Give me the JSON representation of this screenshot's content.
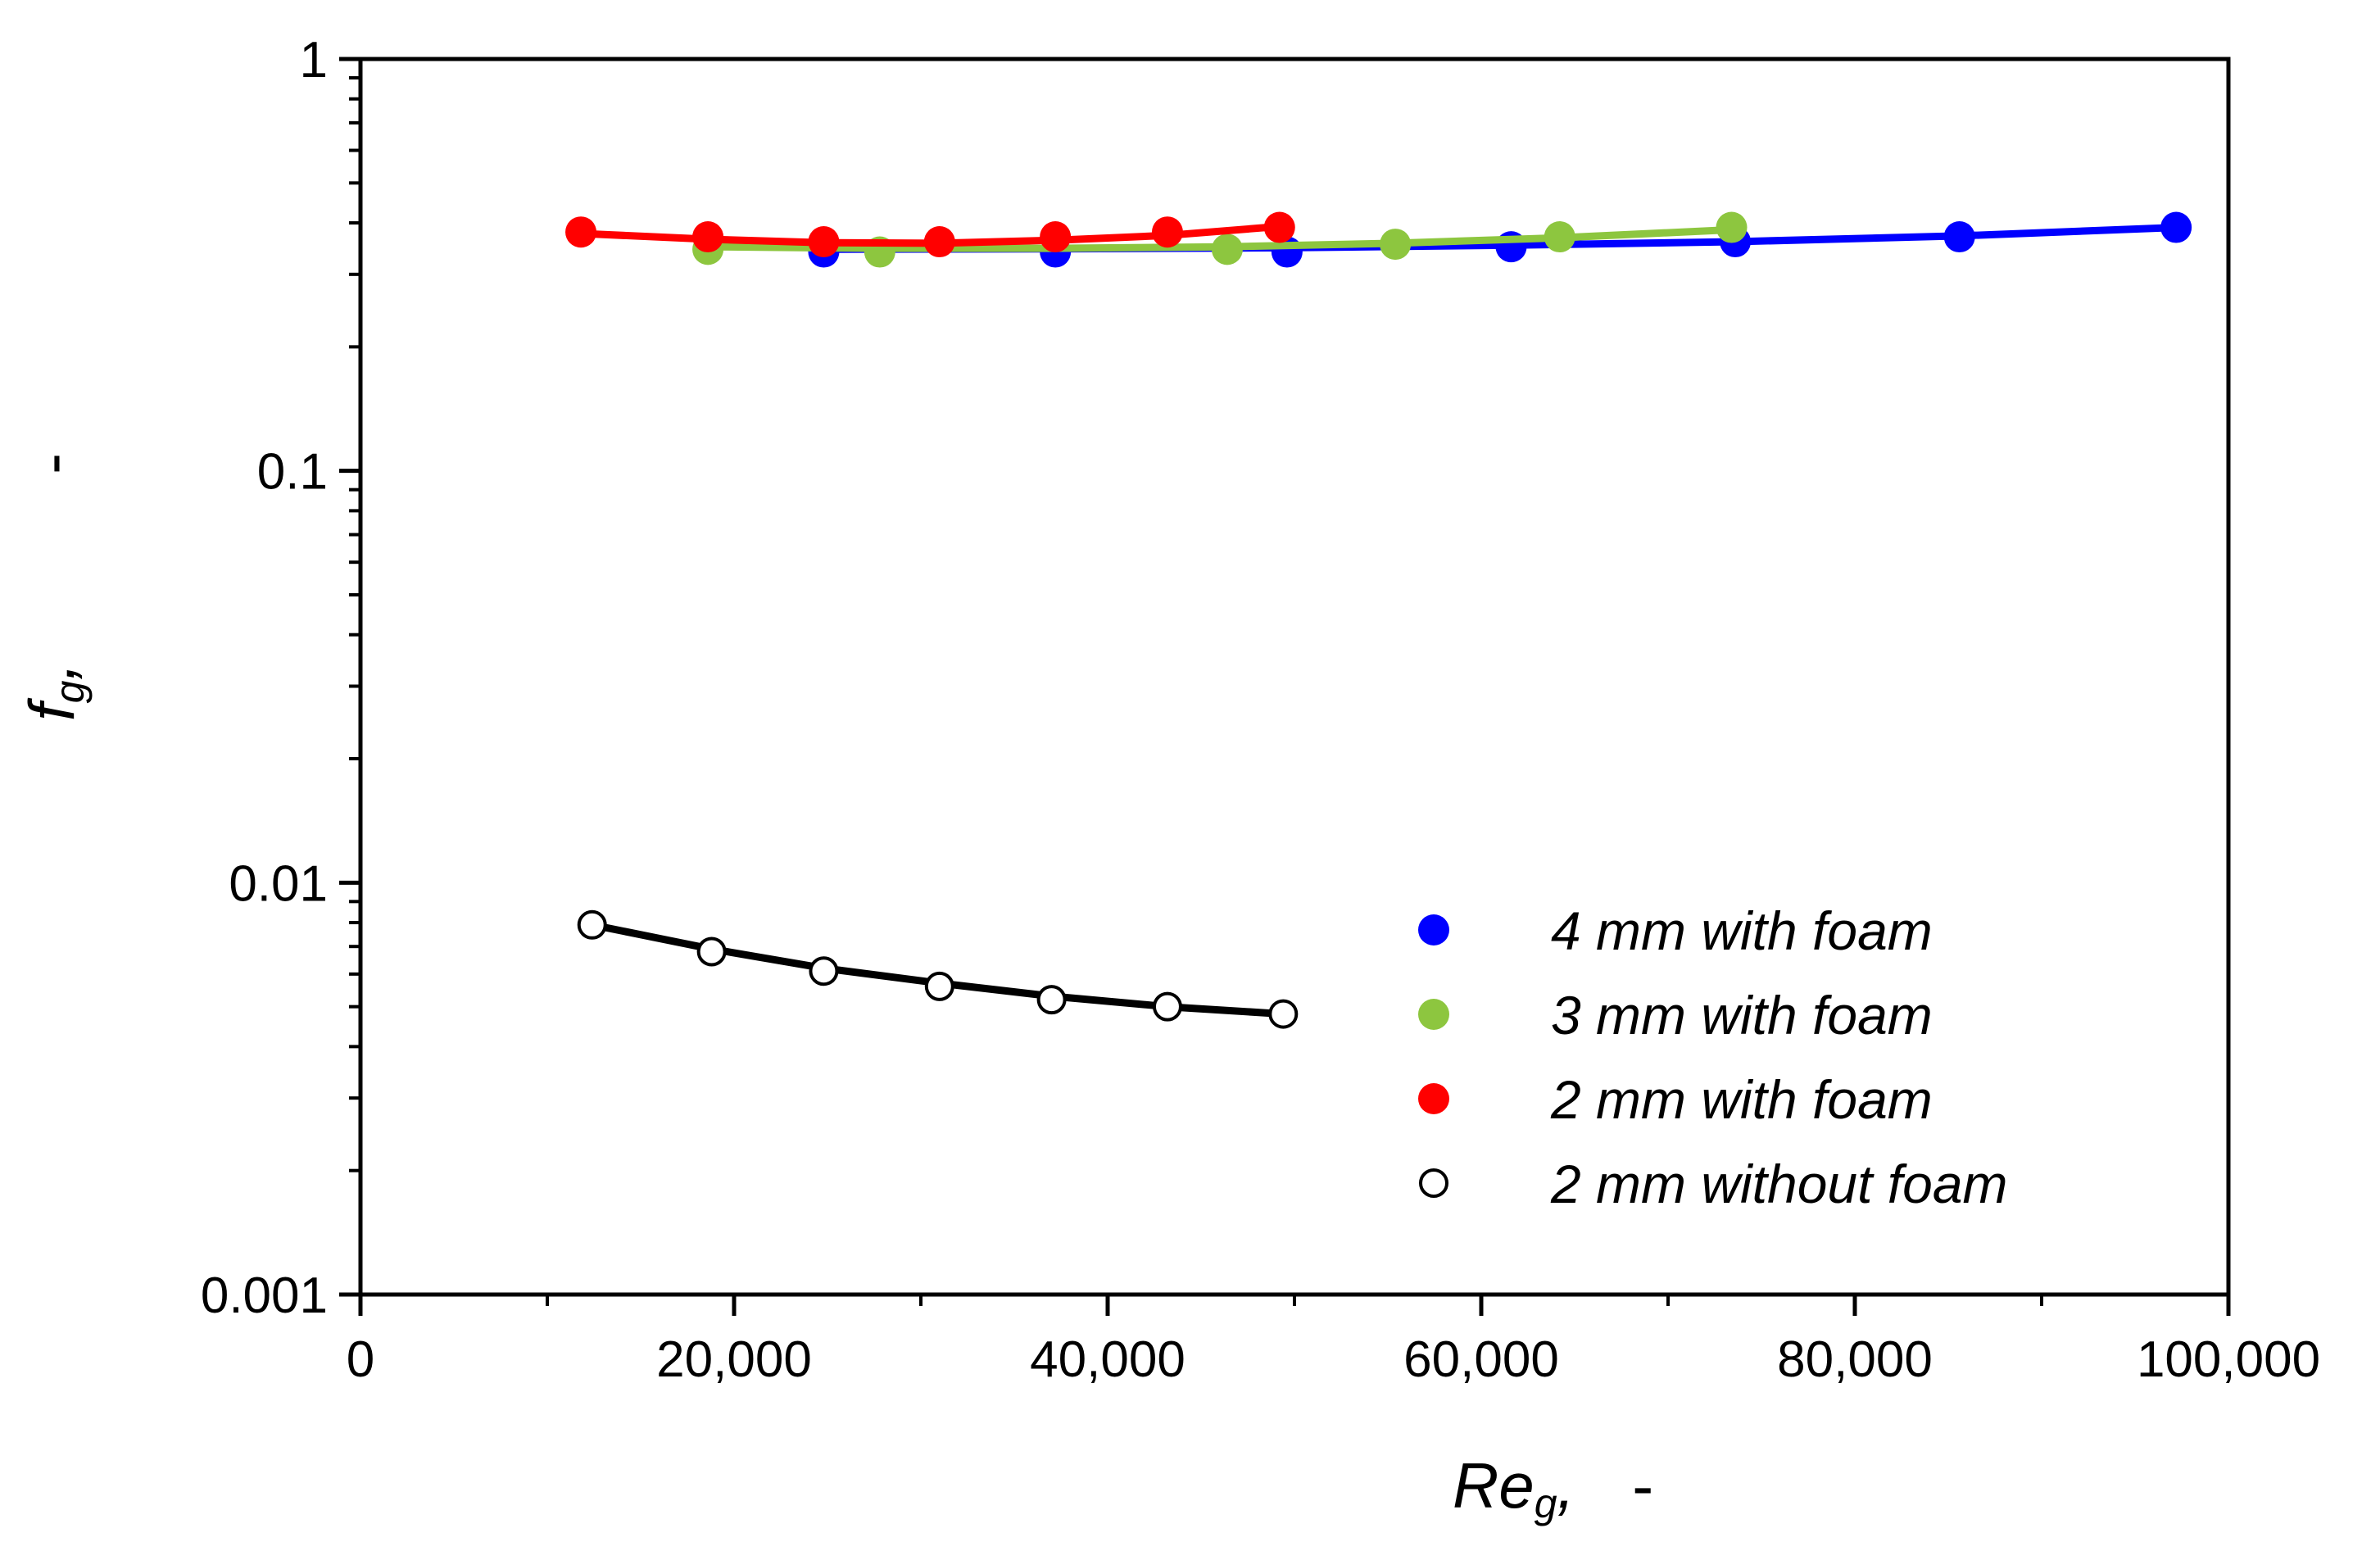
{
  "chart_data": {
    "type": "line",
    "title": "",
    "xlabel": {
      "main": "Re",
      "sub": "g",
      "unit": "-"
    },
    "ylabel": {
      "main": "f",
      "sub": "g",
      "unit": "-"
    },
    "xlim": [
      0,
      100000
    ],
    "ylim": [
      0.001,
      1
    ],
    "yscale": "log",
    "x_ticks": [
      0,
      20000,
      40000,
      60000,
      80000,
      100000
    ],
    "x_tick_labels": [
      "0",
      "20,000",
      "40,000",
      "60,000",
      "80,000",
      "100,000"
    ],
    "y_ticks": [
      0.001,
      0.01,
      0.1,
      1
    ],
    "y_tick_labels": [
      "0.001",
      "0.01",
      "0.1",
      "1"
    ],
    "legend_position": "bottom-right",
    "series": [
      {
        "name": "4 mm with foam",
        "color": "#0000ff",
        "marker": "filled-circle",
        "points": [
          [
            24800,
            0.34
          ],
          [
            37200,
            0.34
          ],
          [
            49600,
            0.34
          ],
          [
            61600,
            0.35
          ],
          [
            73600,
            0.36
          ],
          [
            85600,
            0.37
          ],
          [
            97200,
            0.39
          ]
        ],
        "fit": [
          [
            24800,
            0.345
          ],
          [
            37200,
            0.346
          ],
          [
            49600,
            0.348
          ],
          [
            61600,
            0.353
          ],
          [
            73600,
            0.36
          ],
          [
            85600,
            0.372
          ],
          [
            97200,
            0.39
          ]
        ]
      },
      {
        "name": "3 mm with foam",
        "color": "#8dc63f",
        "marker": "filled-circle",
        "points": [
          [
            18600,
            0.345
          ],
          [
            27800,
            0.34
          ],
          [
            46400,
            0.345
          ],
          [
            55400,
            0.355
          ],
          [
            64200,
            0.37
          ],
          [
            73400,
            0.39
          ]
        ],
        "fit": [
          [
            18600,
            0.35
          ],
          [
            27800,
            0.347
          ],
          [
            37000,
            0.347
          ],
          [
            46400,
            0.35
          ],
          [
            55400,
            0.357
          ],
          [
            64200,
            0.368
          ],
          [
            73400,
            0.385
          ]
        ]
      },
      {
        "name": "2 mm with foam",
        "color": "#ff0000",
        "marker": "filled-circle",
        "points": [
          [
            11800,
            0.38
          ],
          [
            18600,
            0.37
          ],
          [
            24800,
            0.36
          ],
          [
            31000,
            0.36
          ],
          [
            37200,
            0.37
          ],
          [
            43200,
            0.38
          ],
          [
            49200,
            0.39
          ]
        ],
        "fit": [
          [
            11800,
            0.377
          ],
          [
            18600,
            0.365
          ],
          [
            24800,
            0.358
          ],
          [
            31000,
            0.357
          ],
          [
            37200,
            0.363
          ],
          [
            43200,
            0.373
          ],
          [
            49200,
            0.392
          ]
        ]
      },
      {
        "name": "2 mm without foam",
        "color": "#000000",
        "marker": "open-circle",
        "points": [
          [
            12400,
            0.0079
          ],
          [
            18800,
            0.0068
          ],
          [
            24800,
            0.0061
          ],
          [
            31000,
            0.0056
          ],
          [
            37000,
            0.0052
          ],
          [
            43200,
            0.005
          ],
          [
            49400,
            0.0048
          ]
        ],
        "fit": [
          [
            12400,
            0.0079
          ],
          [
            18800,
            0.0069
          ],
          [
            24800,
            0.0062
          ],
          [
            31000,
            0.0057
          ],
          [
            37000,
            0.0053
          ],
          [
            43200,
            0.005
          ],
          [
            49400,
            0.0048
          ]
        ]
      }
    ]
  }
}
